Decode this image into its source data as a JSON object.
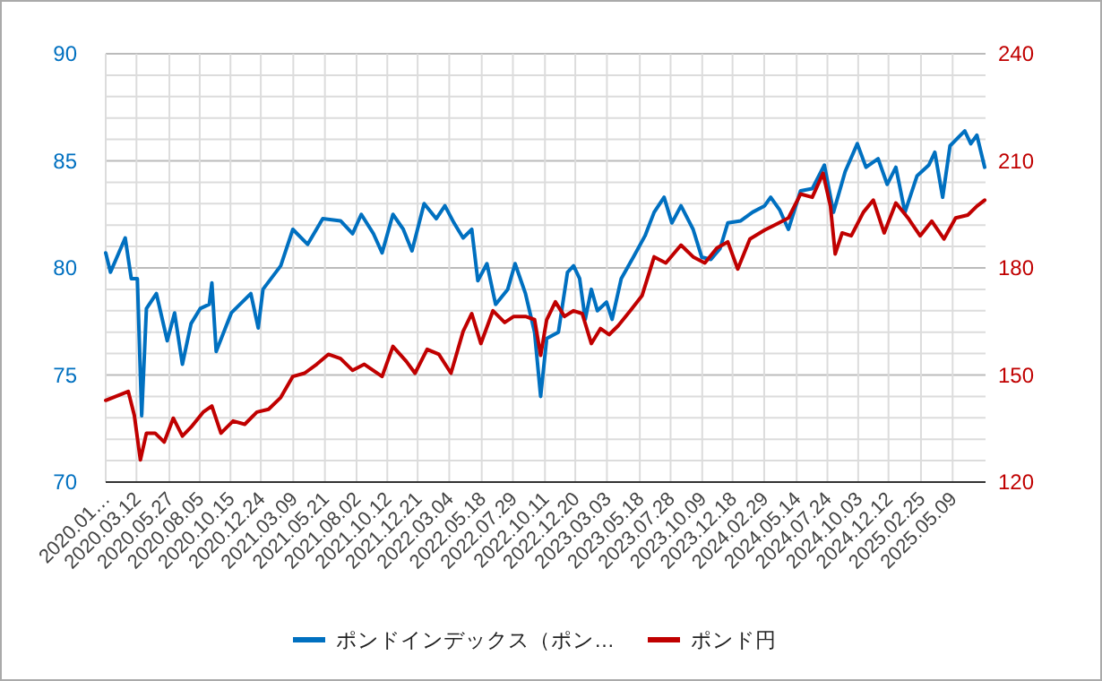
{
  "chart_data": {
    "type": "line",
    "grid": true,
    "legend": "bottom",
    "xlim": [
      "2020-01-01",
      "2025-07-24"
    ],
    "xticks": [
      {
        "value": "2020-01-01",
        "label": "2020.01…"
      },
      {
        "value": "2020-03-12",
        "label": "2020.03.12"
      },
      {
        "value": "2020-05-27",
        "label": "2020.05.27"
      },
      {
        "value": "2020-08-05",
        "label": "2020.08.05"
      },
      {
        "value": "2020-10-15",
        "label": "2020.10.15"
      },
      {
        "value": "2020-12-24",
        "label": "2020.12.24"
      },
      {
        "value": "2021-03-09",
        "label": "2021.03.09"
      },
      {
        "value": "2021-05-21",
        "label": "2021.05.21"
      },
      {
        "value": "2021-08-02",
        "label": "2021.08.02"
      },
      {
        "value": "2021-10-12",
        "label": "2021.10.12"
      },
      {
        "value": "2021-12-21",
        "label": "2021.12.21"
      },
      {
        "value": "2022-03-04",
        "label": "2022.03.04"
      },
      {
        "value": "2022-05-18",
        "label": "2022.05.18"
      },
      {
        "value": "2022-07-29",
        "label": "2022.07.29"
      },
      {
        "value": "2022-10-11",
        "label": "2022.10.11"
      },
      {
        "value": "2022-12-20",
        "label": "2022.12.20"
      },
      {
        "value": "2023-03-03",
        "label": "2023.03.03"
      },
      {
        "value": "2023-05-18",
        "label": "2023.05.18"
      },
      {
        "value": "2023-07-28",
        "label": "2023.07.28"
      },
      {
        "value": "2023-10-09",
        "label": "2023.10.09"
      },
      {
        "value": "2023-12-18",
        "label": "2023.12.18"
      },
      {
        "value": "2024-02-29",
        "label": "2024.02.29"
      },
      {
        "value": "2024-05-14",
        "label": "2024.05.14"
      },
      {
        "value": "2024-07-24",
        "label": "2024.07.24"
      },
      {
        "value": "2024-10-03",
        "label": "2024.10.03"
      },
      {
        "value": "2024-12-12",
        "label": "2024.12.12"
      },
      {
        "value": "2025-02-25",
        "label": "2025.02.25"
      },
      {
        "value": "2025-05-09",
        "label": "2025.05.09"
      }
    ],
    "ylim": [
      70,
      90
    ],
    "yticks": [
      70,
      {
        "value": 71,
        "label": null
      },
      {
        "value": 72,
        "label": null
      },
      {
        "value": 73,
        "label": null
      },
      {
        "value": 74,
        "label": null
      },
      75,
      {
        "value": 76,
        "label": null
      },
      {
        "value": 77,
        "label": null
      },
      {
        "value": 78,
        "label": null
      },
      {
        "value": 79,
        "label": null
      },
      80,
      {
        "value": 81,
        "label": null
      },
      {
        "value": 82,
        "label": null
      },
      {
        "value": 83,
        "label": null
      },
      {
        "value": 84,
        "label": null
      },
      85,
      {
        "value": 86,
        "label": null
      },
      {
        "value": 87,
        "label": null
      },
      {
        "value": 88,
        "label": null
      },
      {
        "value": 89,
        "label": null
      },
      90
    ],
    "y2lim": [
      120,
      240
    ],
    "y2ticks": [
      120,
      150,
      180,
      210,
      240
    ],
    "series": [
      {
        "name": "ポンドインデックス（ポン…",
        "color": "#0070c0",
        "axis": "y",
        "x": [
          "2020-01-01",
          "2020-01-12",
          "2020-02-15",
          "2020-02-29",
          "2020-03-14",
          "2020-03-24",
          "2020-04-04",
          "2020-04-27",
          "2020-05-22",
          "2020-06-08",
          "2020-06-26",
          "2020-07-16",
          "2020-08-06",
          "2020-08-27",
          "2020-09-02",
          "2020-09-12",
          "2020-10-17",
          "2020-12-01",
          "2020-12-18",
          "2020-12-29",
          "2021-02-08",
          "2021-03-08",
          "2021-04-11",
          "2021-05-16",
          "2021-06-26",
          "2021-07-24",
          "2021-08-13",
          "2021-09-10",
          "2021-09-30",
          "2021-10-25",
          "2021-11-18",
          "2021-12-08",
          "2022-01-05",
          "2022-02-02",
          "2022-02-22",
          "2022-03-15",
          "2022-04-05",
          "2022-04-25",
          "2022-05-09",
          "2022-05-30",
          "2022-06-19",
          "2022-07-17",
          "2022-08-03",
          "2022-08-27",
          "2022-09-17",
          "2022-10-01",
          "2022-10-15",
          "2022-11-11",
          "2022-12-02",
          "2022-12-16",
          "2022-12-30",
          "2023-01-12",
          "2023-01-26",
          "2023-02-09",
          "2023-03-02",
          "2023-03-15",
          "2023-04-05",
          "2023-05-03",
          "2023-05-30",
          "2023-06-20",
          "2023-07-13",
          "2023-07-31",
          "2023-08-21",
          "2023-09-18",
          "2023-10-08",
          "2023-10-29",
          "2023-11-19",
          "2023-12-07",
          "2024-01-06",
          "2024-02-02",
          "2024-03-01",
          "2024-03-15",
          "2024-04-05",
          "2024-04-25",
          "2024-05-23",
          "2024-06-19",
          "2024-07-17",
          "2024-08-07",
          "2024-09-03",
          "2024-10-01",
          "2024-10-21",
          "2024-11-18",
          "2024-12-09",
          "2024-12-29",
          "2025-01-19",
          "2025-02-16",
          "2025-03-15",
          "2025-03-29",
          "2025-04-16",
          "2025-05-03",
          "2025-06-06",
          "2025-06-20",
          "2025-07-04",
          "2025-07-22"
        ],
        "values": [
          80.7,
          79.8,
          81.4,
          79.5,
          79.5,
          73.1,
          78.1,
          78.8,
          76.6,
          77.9,
          75.5,
          77.4,
          78.1,
          78.3,
          79.3,
          76.1,
          77.9,
          78.8,
          77.2,
          79.0,
          80.1,
          81.8,
          81.1,
          82.3,
          82.2,
          81.6,
          82.5,
          81.6,
          80.7,
          82.5,
          81.8,
          80.8,
          83.0,
          82.3,
          82.9,
          82.1,
          81.4,
          81.8,
          79.4,
          80.2,
          78.3,
          79.0,
          80.2,
          78.8,
          77.0,
          74.0,
          76.7,
          77.0,
          79.8,
          80.1,
          79.5,
          77.6,
          79.0,
          78.0,
          78.4,
          77.6,
          79.5,
          80.5,
          81.5,
          82.6,
          83.3,
          82.1,
          82.9,
          81.8,
          80.5,
          80.4,
          80.9,
          82.1,
          82.2,
          82.6,
          82.9,
          83.3,
          82.7,
          81.8,
          83.6,
          83.7,
          84.8,
          82.6,
          84.5,
          85.8,
          84.7,
          85.1,
          83.9,
          84.7,
          82.6,
          84.3,
          84.8,
          85.4,
          83.3,
          85.7,
          86.4,
          85.8,
          86.2,
          84.7
        ]
      },
      {
        "name": "ポンド円",
        "color": "#c00000",
        "axis": "y2",
        "x": [
          "2020-01-01",
          "2020-02-22",
          "2020-03-07",
          "2020-03-21",
          "2020-04-04",
          "2020-04-24",
          "2020-05-15",
          "2020-06-05",
          "2020-06-26",
          "2020-07-16",
          "2020-08-13",
          "2020-09-02",
          "2020-09-23",
          "2020-10-21",
          "2020-11-17",
          "2020-12-15",
          "2021-01-11",
          "2021-02-08",
          "2021-03-08",
          "2021-04-04",
          "2021-05-02",
          "2021-05-29",
          "2021-06-26",
          "2021-07-24",
          "2021-08-20",
          "2021-09-30",
          "2021-10-25",
          "2021-11-25",
          "2021-12-15",
          "2022-01-12",
          "2022-02-08",
          "2022-03-08",
          "2022-04-05",
          "2022-04-25",
          "2022-05-16",
          "2022-06-13",
          "2022-07-10",
          "2022-07-31",
          "2022-08-27",
          "2022-09-17",
          "2022-10-01",
          "2022-10-15",
          "2022-11-04",
          "2022-11-25",
          "2022-12-16",
          "2023-01-05",
          "2023-01-26",
          "2023-02-16",
          "2023-03-08",
          "2023-03-29",
          "2023-04-26",
          "2023-05-23",
          "2023-06-20",
          "2023-07-17",
          "2023-08-21",
          "2023-09-18",
          "2023-10-15",
          "2023-11-12",
          "2023-12-07",
          "2023-12-30",
          "2024-01-27",
          "2024-03-01",
          "2024-03-29",
          "2024-04-25",
          "2024-05-23",
          "2024-06-19",
          "2024-07-14",
          "2024-07-31",
          "2024-08-11",
          "2024-08-27",
          "2024-09-17",
          "2024-10-15",
          "2024-11-07",
          "2024-12-02",
          "2024-12-29",
          "2025-01-26",
          "2025-02-23",
          "2025-03-22",
          "2025-04-19",
          "2025-05-16",
          "2025-06-13",
          "2025-07-04",
          "2025-07-22"
        ],
        "values": [
          142.9,
          145.4,
          138.7,
          126.2,
          133.7,
          133.7,
          131.2,
          137.9,
          132.9,
          135.4,
          139.6,
          141.3,
          133.7,
          137.1,
          136.2,
          139.6,
          140.4,
          143.7,
          149.6,
          150.5,
          153.0,
          155.8,
          154.6,
          151.3,
          153.0,
          149.6,
          158.0,
          153.8,
          150.5,
          157.2,
          155.8,
          150.5,
          162.2,
          167.2,
          158.8,
          168.0,
          164.7,
          166.4,
          166.4,
          165.5,
          155.5,
          165.5,
          170.5,
          166.4,
          168.0,
          167.2,
          158.8,
          163.0,
          161.3,
          163.8,
          168.0,
          172.2,
          183.1,
          181.4,
          186.4,
          183.1,
          181.4,
          185.6,
          187.3,
          179.7,
          188.1,
          190.6,
          192.3,
          194.0,
          200.7,
          199.8,
          206.5,
          197.3,
          183.9,
          189.8,
          189.0,
          195.6,
          199.0,
          189.8,
          198.2,
          194.0,
          189.0,
          193.1,
          188.1,
          194.0,
          194.8,
          197.3,
          199.0
        ]
      }
    ]
  }
}
